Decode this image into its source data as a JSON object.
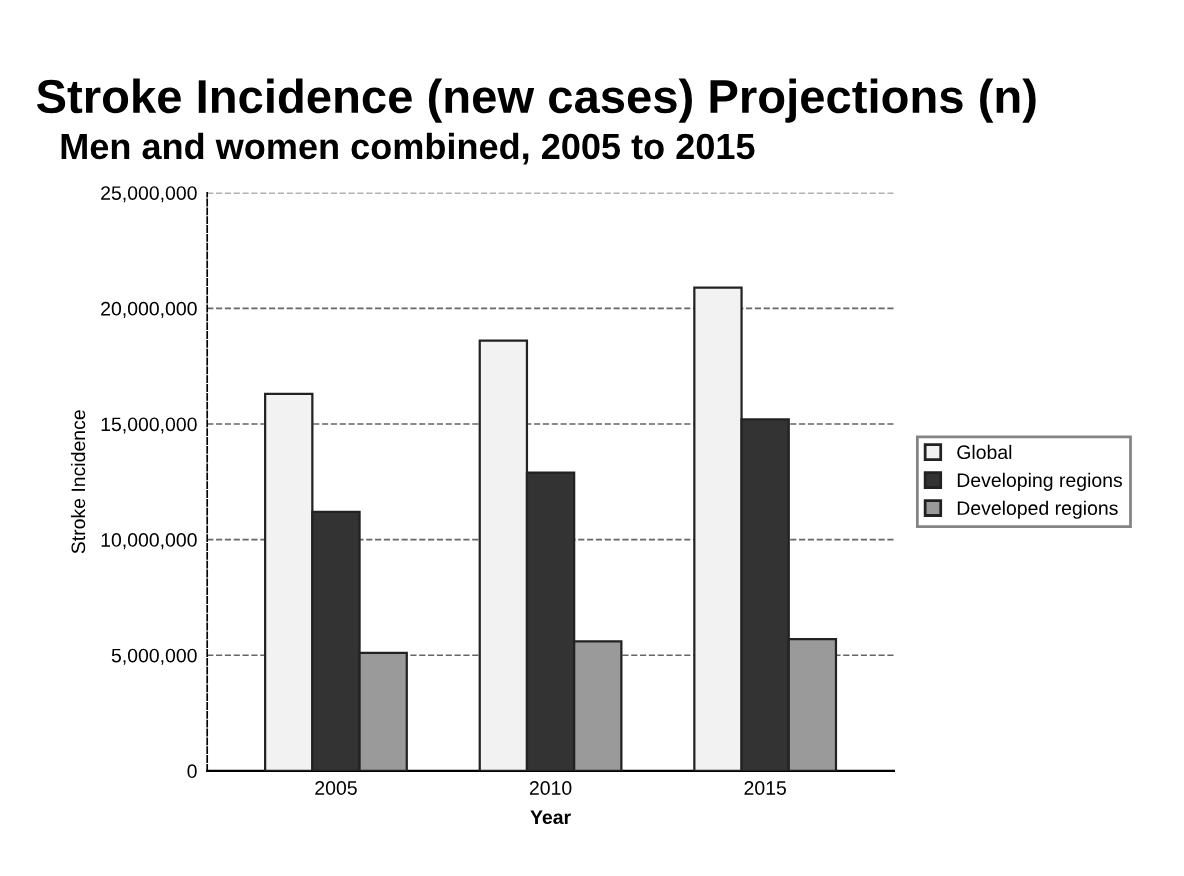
{
  "chart_data": {
    "type": "bar",
    "title": "Stroke Incidence (new cases) Projections (n)",
    "subtitle": "Men and women combined, 2005 to 2015",
    "xlabel": "Year",
    "ylabel": "Stroke Incidence",
    "categories": [
      "2005",
      "2010",
      "2015"
    ],
    "series": [
      {
        "name": "Global",
        "color": "#f2f2f2",
        "values": [
          16300000,
          18600000,
          20900000
        ]
      },
      {
        "name": "Developing regions",
        "color": "#333333",
        "values": [
          11200000,
          12900000,
          15200000
        ]
      },
      {
        "name": "Developed regions",
        "color": "#9a9a9a",
        "values": [
          5100000,
          5600000,
          5700000
        ]
      }
    ],
    "ylim": [
      0,
      25000000
    ],
    "yticks": [
      {
        "value": 0,
        "label": "0"
      },
      {
        "value": 5000000,
        "label": "5,000,000"
      },
      {
        "value": 10000000,
        "label": "10,000,000"
      },
      {
        "value": 15000000,
        "label": "15,000,000"
      },
      {
        "value": 20000000,
        "label": "20,000,000"
      },
      {
        "value": 25000000,
        "label": "25,000,000"
      }
    ],
    "grid": "y",
    "legend": "right"
  }
}
